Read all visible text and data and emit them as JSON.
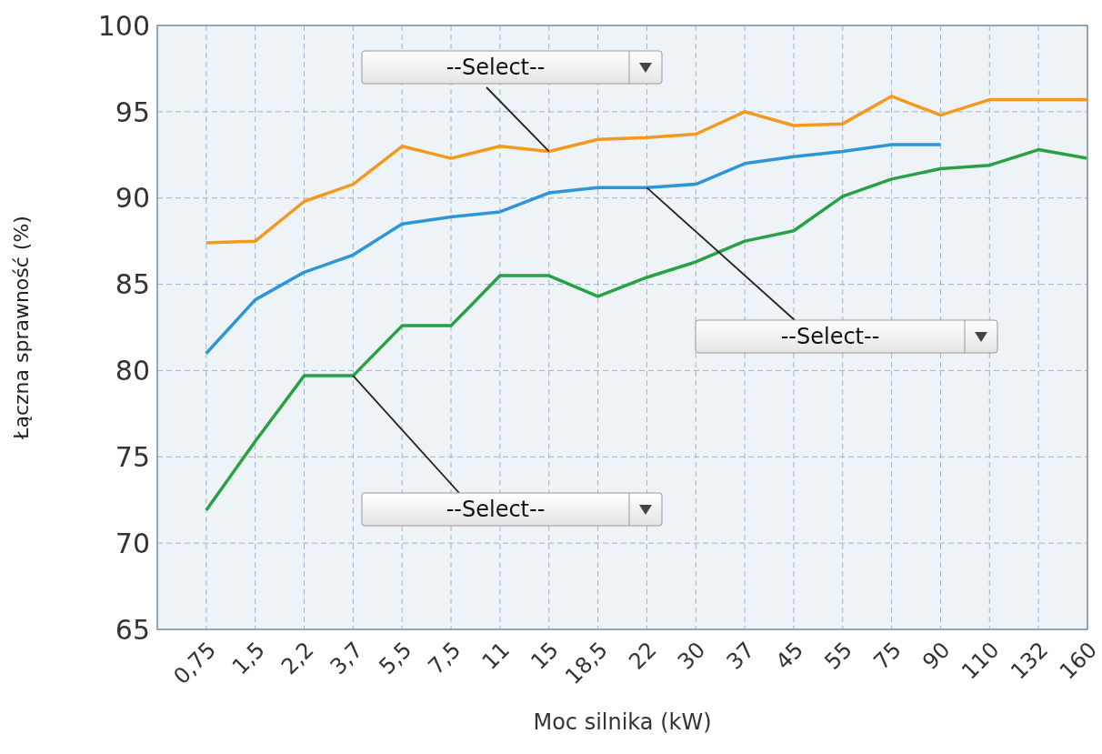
{
  "chart_data": {
    "type": "line",
    "xlabel": "Moc silnika (kW)",
    "ylabel": "Łączna sprawność (%)",
    "categories": [
      "0,75",
      "1,5",
      "2,2",
      "3,7",
      "5,5",
      "7,5",
      "11",
      "15",
      "18,5",
      "22",
      "30",
      "37",
      "45",
      "55",
      "75",
      "90",
      "110",
      "132",
      "160"
    ],
    "series": [
      {
        "color": "#f39a1e",
        "values": [
          87.4,
          87.5,
          89.8,
          90.8,
          93.0,
          92.3,
          93.0,
          92.7,
          93.4,
          93.5,
          93.7,
          95.0,
          94.2,
          94.3,
          95.9,
          94.8,
          95.7,
          95.7,
          95.7
        ]
      },
      {
        "color": "#2d96d6",
        "values": [
          81.0,
          84.1,
          85.7,
          86.7,
          88.5,
          88.9,
          89.2,
          90.3,
          90.6,
          90.6,
          90.8,
          92.0,
          92.4,
          92.7,
          93.1,
          93.1,
          null,
          null,
          null
        ]
      },
      {
        "color": "#27a143",
        "values": [
          71.9,
          75.9,
          79.7,
          79.7,
          82.6,
          82.6,
          85.5,
          85.5,
          84.3,
          85.4,
          86.3,
          87.5,
          88.1,
          90.1,
          91.1,
          91.7,
          91.9,
          92.8,
          92.3
        ]
      }
    ],
    "ylim": [
      65,
      100
    ],
    "yticks": [
      65,
      70,
      75,
      80,
      85,
      90,
      95,
      100
    ],
    "grid": true,
    "marker": "none",
    "line_style": "solid",
    "legend": false,
    "annotations": [
      {
        "text": "--Select--",
        "x": "15",
        "y": 92.7
      },
      {
        "text": "--Select--",
        "x": "22",
        "y": 90.6
      },
      {
        "text": "--Select--",
        "x": "3,7",
        "y": 79.7
      }
    ]
  }
}
